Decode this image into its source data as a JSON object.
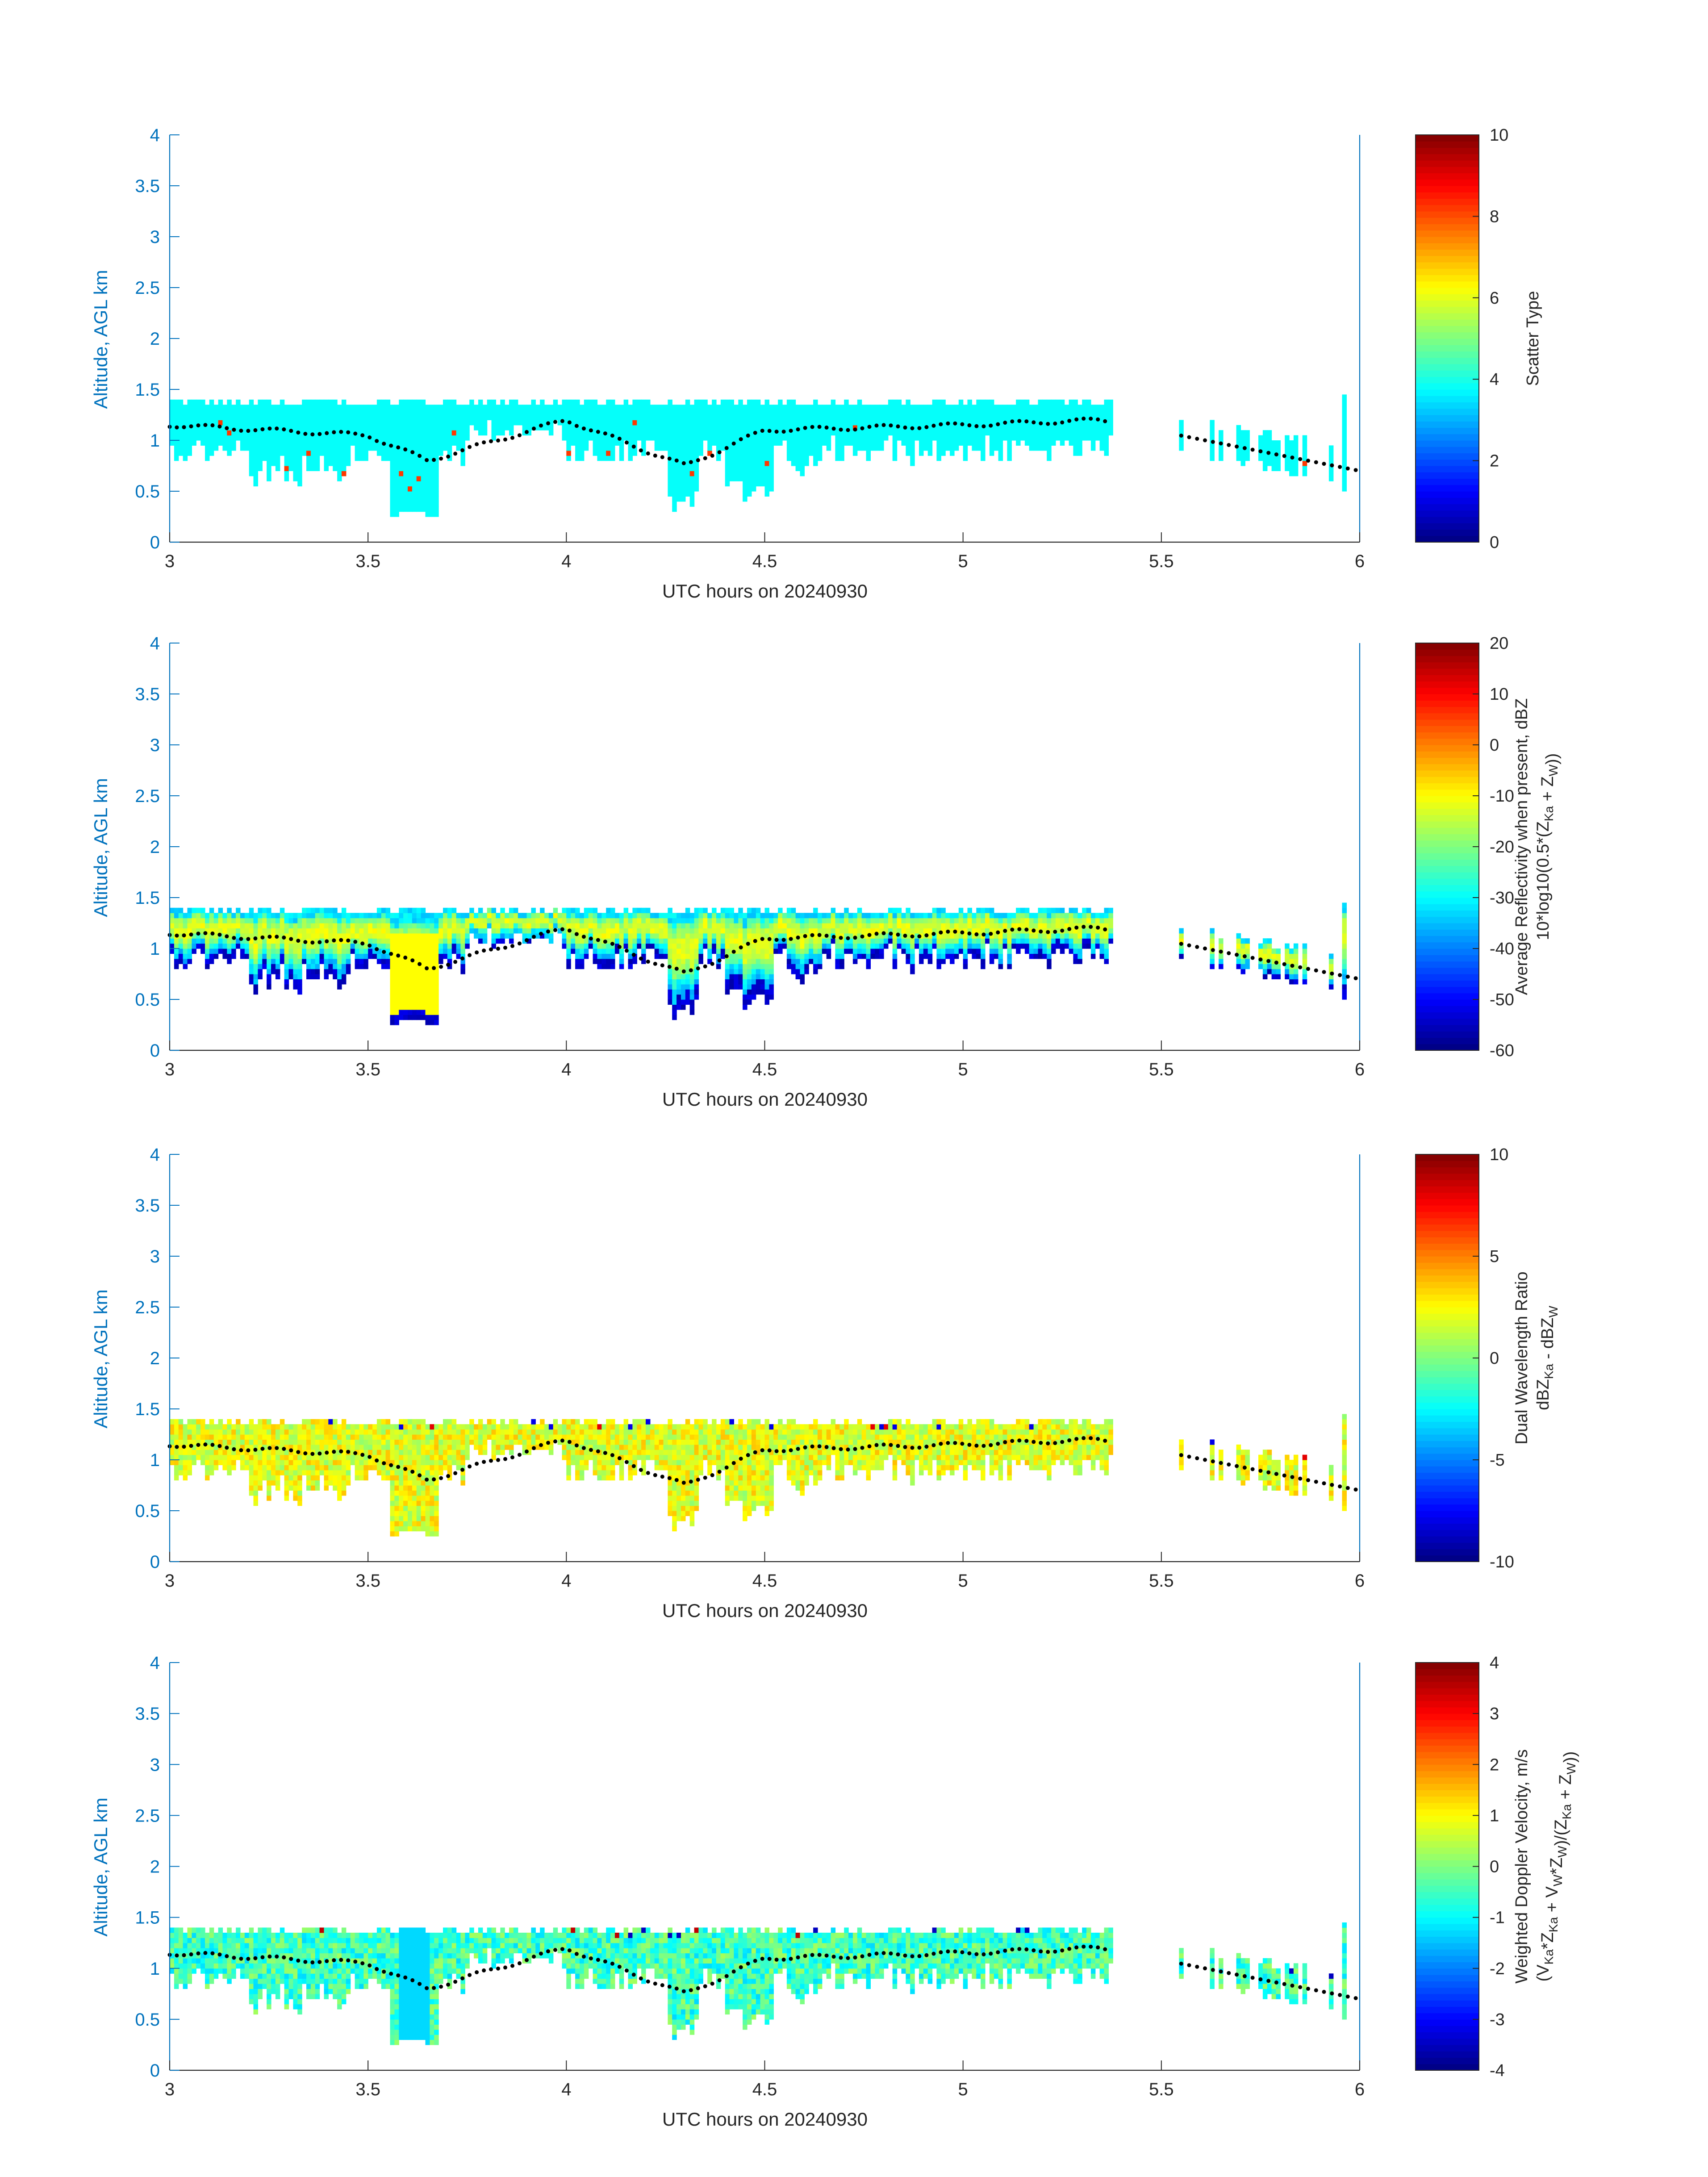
{
  "figure": {
    "colors": {
      "axis": "#0072BD",
      "text": "#262626",
      "background": "#ffffff",
      "empty_pixel": "#ffffff",
      "top_marker": "#000000"
    }
  },
  "chart_data": [
    {
      "type": "heatmap",
      "title": "",
      "xlabel": "UTC hours on 20240930",
      "ylabel": "Altitude, AGL km",
      "xlim": [
        3,
        6
      ],
      "ylim": [
        0,
        4
      ],
      "xticks": [
        "3",
        "3.5",
        "4",
        "4.5",
        "5",
        "5.5",
        "6"
      ],
      "yticks": [
        "0",
        "0.5",
        "1",
        "1.5",
        "2",
        "2.5",
        "3",
        "3.5",
        "4"
      ],
      "colorbar": {
        "colormap": "jet",
        "clim": [
          0,
          10
        ],
        "ticks": [
          "0",
          "2",
          "4",
          "6",
          "8",
          "10"
        ],
        "label_lines": [
          "Scatter Type"
        ]
      },
      "grid": false,
      "legend": "none",
      "field": "scatter_type",
      "dominant_value": 3.8,
      "secondary_value": 8.2,
      "cloud_top_km_at": {
        "3.0": 1.15,
        "3.5": 1.05,
        "3.65": 0.8,
        "4.0": 1.2,
        "4.3": 0.75,
        "4.5": 1.1,
        "5.0": 1.15,
        "5.35": 1.2,
        "6.0": 0.7
      }
    },
    {
      "type": "heatmap",
      "title": "",
      "xlabel": "UTC hours on 20240930",
      "ylabel": "Altitude, AGL km",
      "xlim": [
        3,
        6
      ],
      "ylim": [
        0,
        4
      ],
      "xticks": [
        "3",
        "3.5",
        "4",
        "4.5",
        "5",
        "5.5",
        "6"
      ],
      "yticks": [
        "0",
        "0.5",
        "1",
        "1.5",
        "2",
        "2.5",
        "3",
        "3.5",
        "4"
      ],
      "colorbar": {
        "colormap": "jet",
        "clim": [
          -60,
          20
        ],
        "ticks": [
          "-60",
          "-50",
          "-40",
          "-30",
          "-20",
          "-10",
          "0",
          "10",
          "20"
        ],
        "label_lines": [
          "Average Reflectivity when present, dBZ",
          "10*log10(0.5*(Z_Ka + Z_W))"
        ]
      },
      "grid": false,
      "legend": "none",
      "field": "reflectivity_dbz",
      "top_value_dbz": -35,
      "max_value_dbz": -12,
      "edge_value_dbz": -57
    },
    {
      "type": "heatmap",
      "title": "",
      "xlabel": "UTC hours on 20240930",
      "ylabel": "Altitude, AGL km",
      "xlim": [
        3,
        6
      ],
      "ylim": [
        0,
        4
      ],
      "xticks": [
        "3",
        "3.5",
        "4",
        "4.5",
        "5",
        "5.5",
        "6"
      ],
      "yticks": [
        "0",
        "0.5",
        "1",
        "1.5",
        "2",
        "2.5",
        "3",
        "3.5",
        "4"
      ],
      "colorbar": {
        "colormap": "jet",
        "clim": [
          -10,
          10
        ],
        "ticks": [
          "-10",
          "-5",
          "0",
          "5",
          "10"
        ],
        "label_lines": [
          "Dual Wavelength Ratio",
          "dBZ_Ka - dBZ_W"
        ]
      },
      "grid": false,
      "legend": "none",
      "field": "dual_wavelength_ratio_db",
      "typical_value_db": 2
    },
    {
      "type": "heatmap",
      "title": "",
      "xlabel": "UTC hours on 20240930",
      "ylabel": "Altitude, AGL km",
      "xlim": [
        3,
        6
      ],
      "ylim": [
        0,
        4
      ],
      "xticks": [
        "3",
        "3.5",
        "4",
        "4.5",
        "5",
        "5.5",
        "6"
      ],
      "yticks": [
        "0",
        "0.5",
        "1",
        "1.5",
        "2",
        "2.5",
        "3",
        "3.5",
        "4"
      ],
      "colorbar": {
        "colormap": "jet",
        "clim": [
          -4,
          4
        ],
        "ticks": [
          "-4",
          "-3",
          "-2",
          "-1",
          "0",
          "1",
          "2",
          "3",
          "4"
        ],
        "label_lines": [
          "Weighted Doppler Velocity, m/s",
          "(V_Ka*Z_Ka + V_W*Z_W)/(Z_Ka + Z_W))"
        ]
      },
      "grid": false,
      "legend": "none",
      "field": "doppler_velocity_ms",
      "typical_value_ms": -0.5
    }
  ]
}
